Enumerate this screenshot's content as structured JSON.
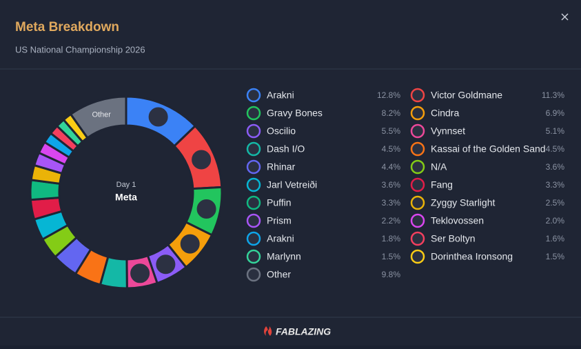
{
  "header": {
    "title": "Meta Breakdown",
    "subtitle": "US National Championship 2026"
  },
  "chart_data": {
    "type": "donut",
    "center_label": {
      "top": "Day 1",
      "main": "Meta"
    },
    "categories": [
      "Arakni",
      "Victor Goldmane",
      "Gravy Bones",
      "Cindra",
      "Oscilio",
      "Vynnset",
      "Dash I/O",
      "Kassai of the Golden Sand",
      "Rhinar",
      "N/A",
      "Jarl Vetreiði",
      "Fang",
      "Puffin",
      "Zyggy Starlight",
      "Prism",
      "Teklovossen",
      "Arakni",
      "Ser Boltyn",
      "Marlynn",
      "Dorinthea Ironsong",
      "Other"
    ],
    "values": [
      12.8,
      11.3,
      8.2,
      6.9,
      5.5,
      5.1,
      4.5,
      4.5,
      4.4,
      3.6,
      3.6,
      3.3,
      3.3,
      2.5,
      2.2,
      2.0,
      1.8,
      1.6,
      1.5,
      1.5,
      9.8
    ],
    "value_labels": [
      "12.8%",
      "11.3%",
      "8.2%",
      "6.9%",
      "5.5%",
      "5.1%",
      "4.5%",
      "4.5%",
      "4.4%",
      "3.6%",
      "3.6%",
      "3.3%",
      "3.3%",
      "2.5%",
      "2.2%",
      "2.0%",
      "1.8%",
      "1.6%",
      "1.5%",
      "1.5%",
      "9.8%"
    ],
    "colors": [
      "#3b82f6",
      "#ef4444",
      "#22c55e",
      "#f59e0b",
      "#8b5cf6",
      "#ec4899",
      "#14b8a6",
      "#f97316",
      "#6366f1",
      "#84cc16",
      "#06b6d4",
      "#e11d48",
      "#10b981",
      "#eab308",
      "#a855f7",
      "#d946ef",
      "#0ea5e9",
      "#f43f5e",
      "#34d399",
      "#facc15",
      "#6b7280"
    ]
  },
  "footer": {
    "brand": "FABLAZING"
  }
}
